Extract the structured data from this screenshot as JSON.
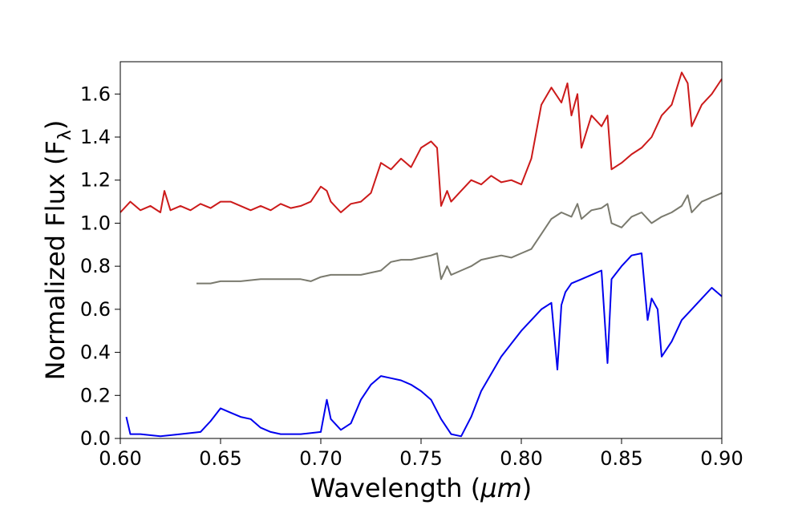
{
  "chart_data": {
    "type": "line",
    "xlabel": "Wavelength (μm)",
    "xlabel_parts": {
      "prefix": "Wavelength (",
      "unit": "μm",
      "suffix": ")"
    },
    "ylabel": "Normalized Flux (Fλ)",
    "ylabel_parts": {
      "main": "Normalized Flux (F",
      "sub": "λ",
      "close": ")"
    },
    "xlim": [
      0.6,
      0.9
    ],
    "ylim": [
      0.0,
      1.75
    ],
    "xticks": [
      0.6,
      0.65,
      0.7,
      0.75,
      0.8,
      0.85,
      0.9
    ],
    "xtick_labels": [
      "0.60",
      "0.65",
      "0.70",
      "0.75",
      "0.80",
      "0.85",
      "0.90"
    ],
    "yticks": [
      0.0,
      0.2,
      0.4,
      0.6,
      0.8,
      1.0,
      1.2,
      1.4,
      1.6
    ],
    "ytick_labels": [
      "0.0",
      "0.2",
      "0.4",
      "0.6",
      "0.8",
      "1.0",
      "1.2",
      "1.4",
      "1.6"
    ],
    "grid": false,
    "legend": "none",
    "series": [
      {
        "color": "#cc1a1a",
        "x": [
          0.6,
          0.605,
          0.61,
          0.615,
          0.62,
          0.622,
          0.625,
          0.63,
          0.635,
          0.64,
          0.645,
          0.65,
          0.655,
          0.66,
          0.665,
          0.67,
          0.675,
          0.68,
          0.685,
          0.69,
          0.695,
          0.7,
          0.703,
          0.705,
          0.71,
          0.715,
          0.72,
          0.725,
          0.73,
          0.735,
          0.74,
          0.745,
          0.75,
          0.755,
          0.758,
          0.76,
          0.763,
          0.765,
          0.77,
          0.775,
          0.78,
          0.785,
          0.79,
          0.795,
          0.8,
          0.805,
          0.81,
          0.815,
          0.82,
          0.823,
          0.825,
          0.828,
          0.83,
          0.835,
          0.84,
          0.843,
          0.845,
          0.85,
          0.855,
          0.86,
          0.865,
          0.87,
          0.875,
          0.88,
          0.883,
          0.885,
          0.89,
          0.895,
          0.9
        ],
        "y": [
          1.05,
          1.1,
          1.06,
          1.08,
          1.05,
          1.15,
          1.06,
          1.08,
          1.06,
          1.09,
          1.07,
          1.1,
          1.1,
          1.08,
          1.06,
          1.08,
          1.06,
          1.09,
          1.07,
          1.08,
          1.1,
          1.17,
          1.15,
          1.1,
          1.05,
          1.09,
          1.1,
          1.14,
          1.28,
          1.25,
          1.3,
          1.26,
          1.35,
          1.38,
          1.35,
          1.08,
          1.15,
          1.1,
          1.15,
          1.2,
          1.18,
          1.22,
          1.19,
          1.2,
          1.18,
          1.3,
          1.55,
          1.63,
          1.56,
          1.65,
          1.5,
          1.6,
          1.35,
          1.5,
          1.45,
          1.5,
          1.25,
          1.28,
          1.32,
          1.35,
          1.4,
          1.5,
          1.55,
          1.7,
          1.65,
          1.45,
          1.55,
          1.6,
          1.67
        ]
      },
      {
        "color": "#7a7a6e",
        "x": [
          0.638,
          0.645,
          0.65,
          0.66,
          0.67,
          0.68,
          0.69,
          0.695,
          0.7,
          0.705,
          0.71,
          0.72,
          0.73,
          0.735,
          0.74,
          0.745,
          0.75,
          0.755,
          0.758,
          0.76,
          0.763,
          0.765,
          0.77,
          0.775,
          0.78,
          0.785,
          0.79,
          0.795,
          0.8,
          0.805,
          0.81,
          0.815,
          0.82,
          0.825,
          0.828,
          0.83,
          0.835,
          0.84,
          0.843,
          0.845,
          0.85,
          0.855,
          0.86,
          0.865,
          0.87,
          0.875,
          0.88,
          0.883,
          0.885,
          0.89,
          0.895,
          0.9
        ],
        "y": [
          0.72,
          0.72,
          0.73,
          0.73,
          0.74,
          0.74,
          0.74,
          0.73,
          0.75,
          0.76,
          0.76,
          0.76,
          0.78,
          0.82,
          0.83,
          0.83,
          0.84,
          0.85,
          0.86,
          0.74,
          0.8,
          0.76,
          0.78,
          0.8,
          0.83,
          0.84,
          0.85,
          0.84,
          0.86,
          0.88,
          0.95,
          1.02,
          1.05,
          1.03,
          1.09,
          1.02,
          1.06,
          1.07,
          1.09,
          1.0,
          0.98,
          1.03,
          1.05,
          1.0,
          1.03,
          1.05,
          1.08,
          1.13,
          1.05,
          1.1,
          1.12,
          1.14
        ]
      },
      {
        "color": "#0000ee",
        "x": [
          0.603,
          0.605,
          0.61,
          0.62,
          0.63,
          0.64,
          0.645,
          0.65,
          0.655,
          0.66,
          0.665,
          0.67,
          0.675,
          0.68,
          0.69,
          0.7,
          0.703,
          0.705,
          0.71,
          0.715,
          0.72,
          0.725,
          0.73,
          0.735,
          0.74,
          0.745,
          0.75,
          0.755,
          0.76,
          0.765,
          0.77,
          0.775,
          0.78,
          0.785,
          0.79,
          0.795,
          0.8,
          0.805,
          0.81,
          0.815,
          0.818,
          0.82,
          0.822,
          0.825,
          0.83,
          0.835,
          0.84,
          0.843,
          0.845,
          0.85,
          0.855,
          0.86,
          0.863,
          0.865,
          0.868,
          0.87,
          0.875,
          0.88,
          0.885,
          0.89,
          0.895,
          0.9
        ],
        "y": [
          0.1,
          0.02,
          0.02,
          0.01,
          0.02,
          0.03,
          0.08,
          0.14,
          0.12,
          0.1,
          0.09,
          0.05,
          0.03,
          0.02,
          0.02,
          0.03,
          0.18,
          0.09,
          0.04,
          0.07,
          0.18,
          0.25,
          0.29,
          0.28,
          0.27,
          0.25,
          0.22,
          0.18,
          0.09,
          0.02,
          0.01,
          0.1,
          0.22,
          0.3,
          0.38,
          0.44,
          0.5,
          0.55,
          0.6,
          0.63,
          0.32,
          0.62,
          0.68,
          0.72,
          0.74,
          0.76,
          0.78,
          0.35,
          0.74,
          0.8,
          0.85,
          0.86,
          0.55,
          0.65,
          0.6,
          0.38,
          0.45,
          0.55,
          0.6,
          0.65,
          0.7,
          0.66
        ]
      }
    ]
  }
}
